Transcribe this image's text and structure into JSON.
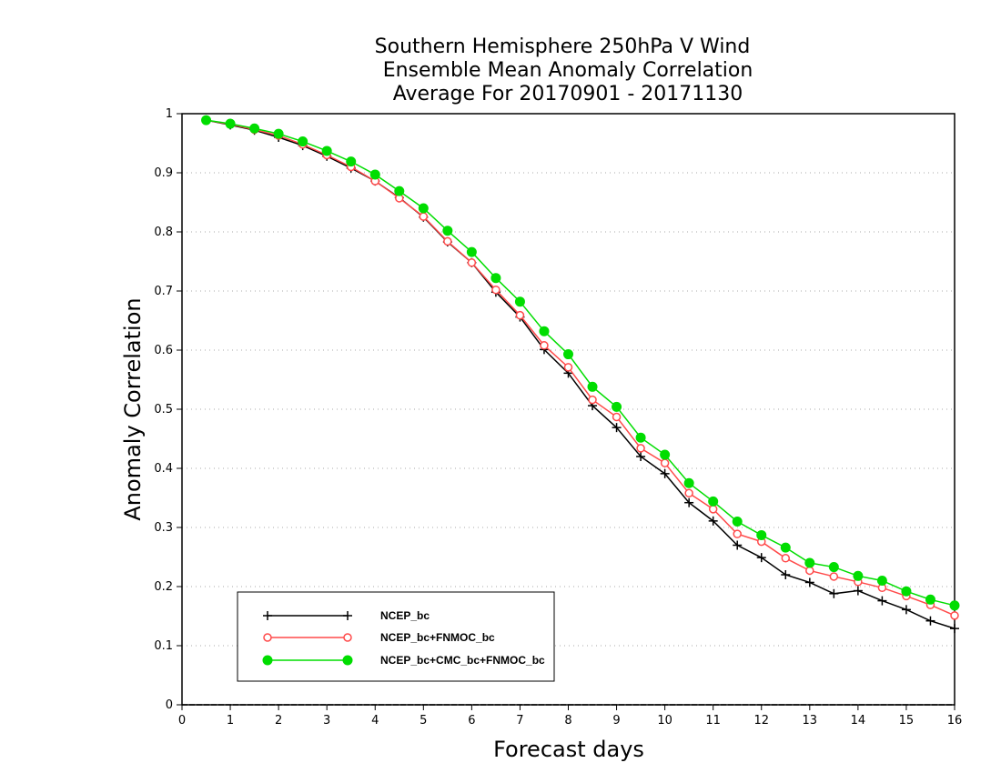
{
  "chart_data": {
    "type": "line",
    "title": [
      "Southern Hemisphere 250hPa V Wind",
      "Ensemble Mean Anomaly Correlation",
      "Average For 20170901 - 20171130"
    ],
    "xlabel": "Forecast days",
    "ylabel": "Anomaly Correlation",
    "xlim": [
      0,
      16
    ],
    "ylim": [
      0,
      1
    ],
    "xticks": [
      "0",
      "1",
      "2",
      "3",
      "4",
      "5",
      "6",
      "7",
      "8",
      "9",
      "10",
      "11",
      "12",
      "13",
      "14",
      "15",
      "16"
    ],
    "yticks": [
      "0",
      "0.1",
      "0.2",
      "0.3",
      "0.4",
      "0.5",
      "0.6",
      "0.7",
      "0.8",
      "0.9",
      "1"
    ],
    "grid": "horizontal dotted",
    "legend_position": "bottom-left",
    "x": [
      0.5,
      1,
      1.5,
      2,
      2.5,
      3,
      3.5,
      4,
      4.5,
      5,
      5.5,
      6,
      6.5,
      7,
      7.5,
      8,
      8.5,
      9,
      9.5,
      10,
      10.5,
      11,
      11.5,
      12,
      12.5,
      13,
      13.5,
      14,
      14.5,
      15,
      15.5,
      16
    ],
    "series": [
      {
        "name": "NCEP_bc",
        "color": "#000000",
        "marker": "plus",
        "values": [
          0.989,
          0.981,
          0.972,
          0.96,
          0.946,
          0.928,
          0.908,
          0.886,
          0.858,
          0.825,
          0.783,
          0.748,
          0.698,
          0.656,
          0.601,
          0.561,
          0.506,
          0.469,
          0.42,
          0.391,
          0.342,
          0.311,
          0.27,
          0.249,
          0.22,
          0.207,
          0.188,
          0.193,
          0.176,
          0.161,
          0.142,
          0.129
        ]
      },
      {
        "name": "NCEP_bc+FNMOC_bc",
        "color": "#ff4a4a",
        "marker": "open-circle",
        "values": [
          0.989,
          0.982,
          0.973,
          0.963,
          0.948,
          0.93,
          0.91,
          0.886,
          0.857,
          0.826,
          0.784,
          0.748,
          0.702,
          0.659,
          0.608,
          0.571,
          0.516,
          0.487,
          0.434,
          0.409,
          0.358,
          0.331,
          0.289,
          0.276,
          0.248,
          0.227,
          0.217,
          0.208,
          0.198,
          0.184,
          0.169,
          0.151
        ]
      },
      {
        "name": "NCEP_bc+CMC_bc+FNMOC_bc",
        "color": "#00dd00",
        "marker": "filled-circle",
        "values": [
          0.989,
          0.983,
          0.975,
          0.966,
          0.953,
          0.937,
          0.919,
          0.897,
          0.869,
          0.84,
          0.802,
          0.766,
          0.722,
          0.682,
          0.632,
          0.593,
          0.538,
          0.504,
          0.452,
          0.423,
          0.375,
          0.344,
          0.31,
          0.287,
          0.266,
          0.24,
          0.233,
          0.218,
          0.21,
          0.192,
          0.178,
          0.168
        ]
      }
    ]
  }
}
